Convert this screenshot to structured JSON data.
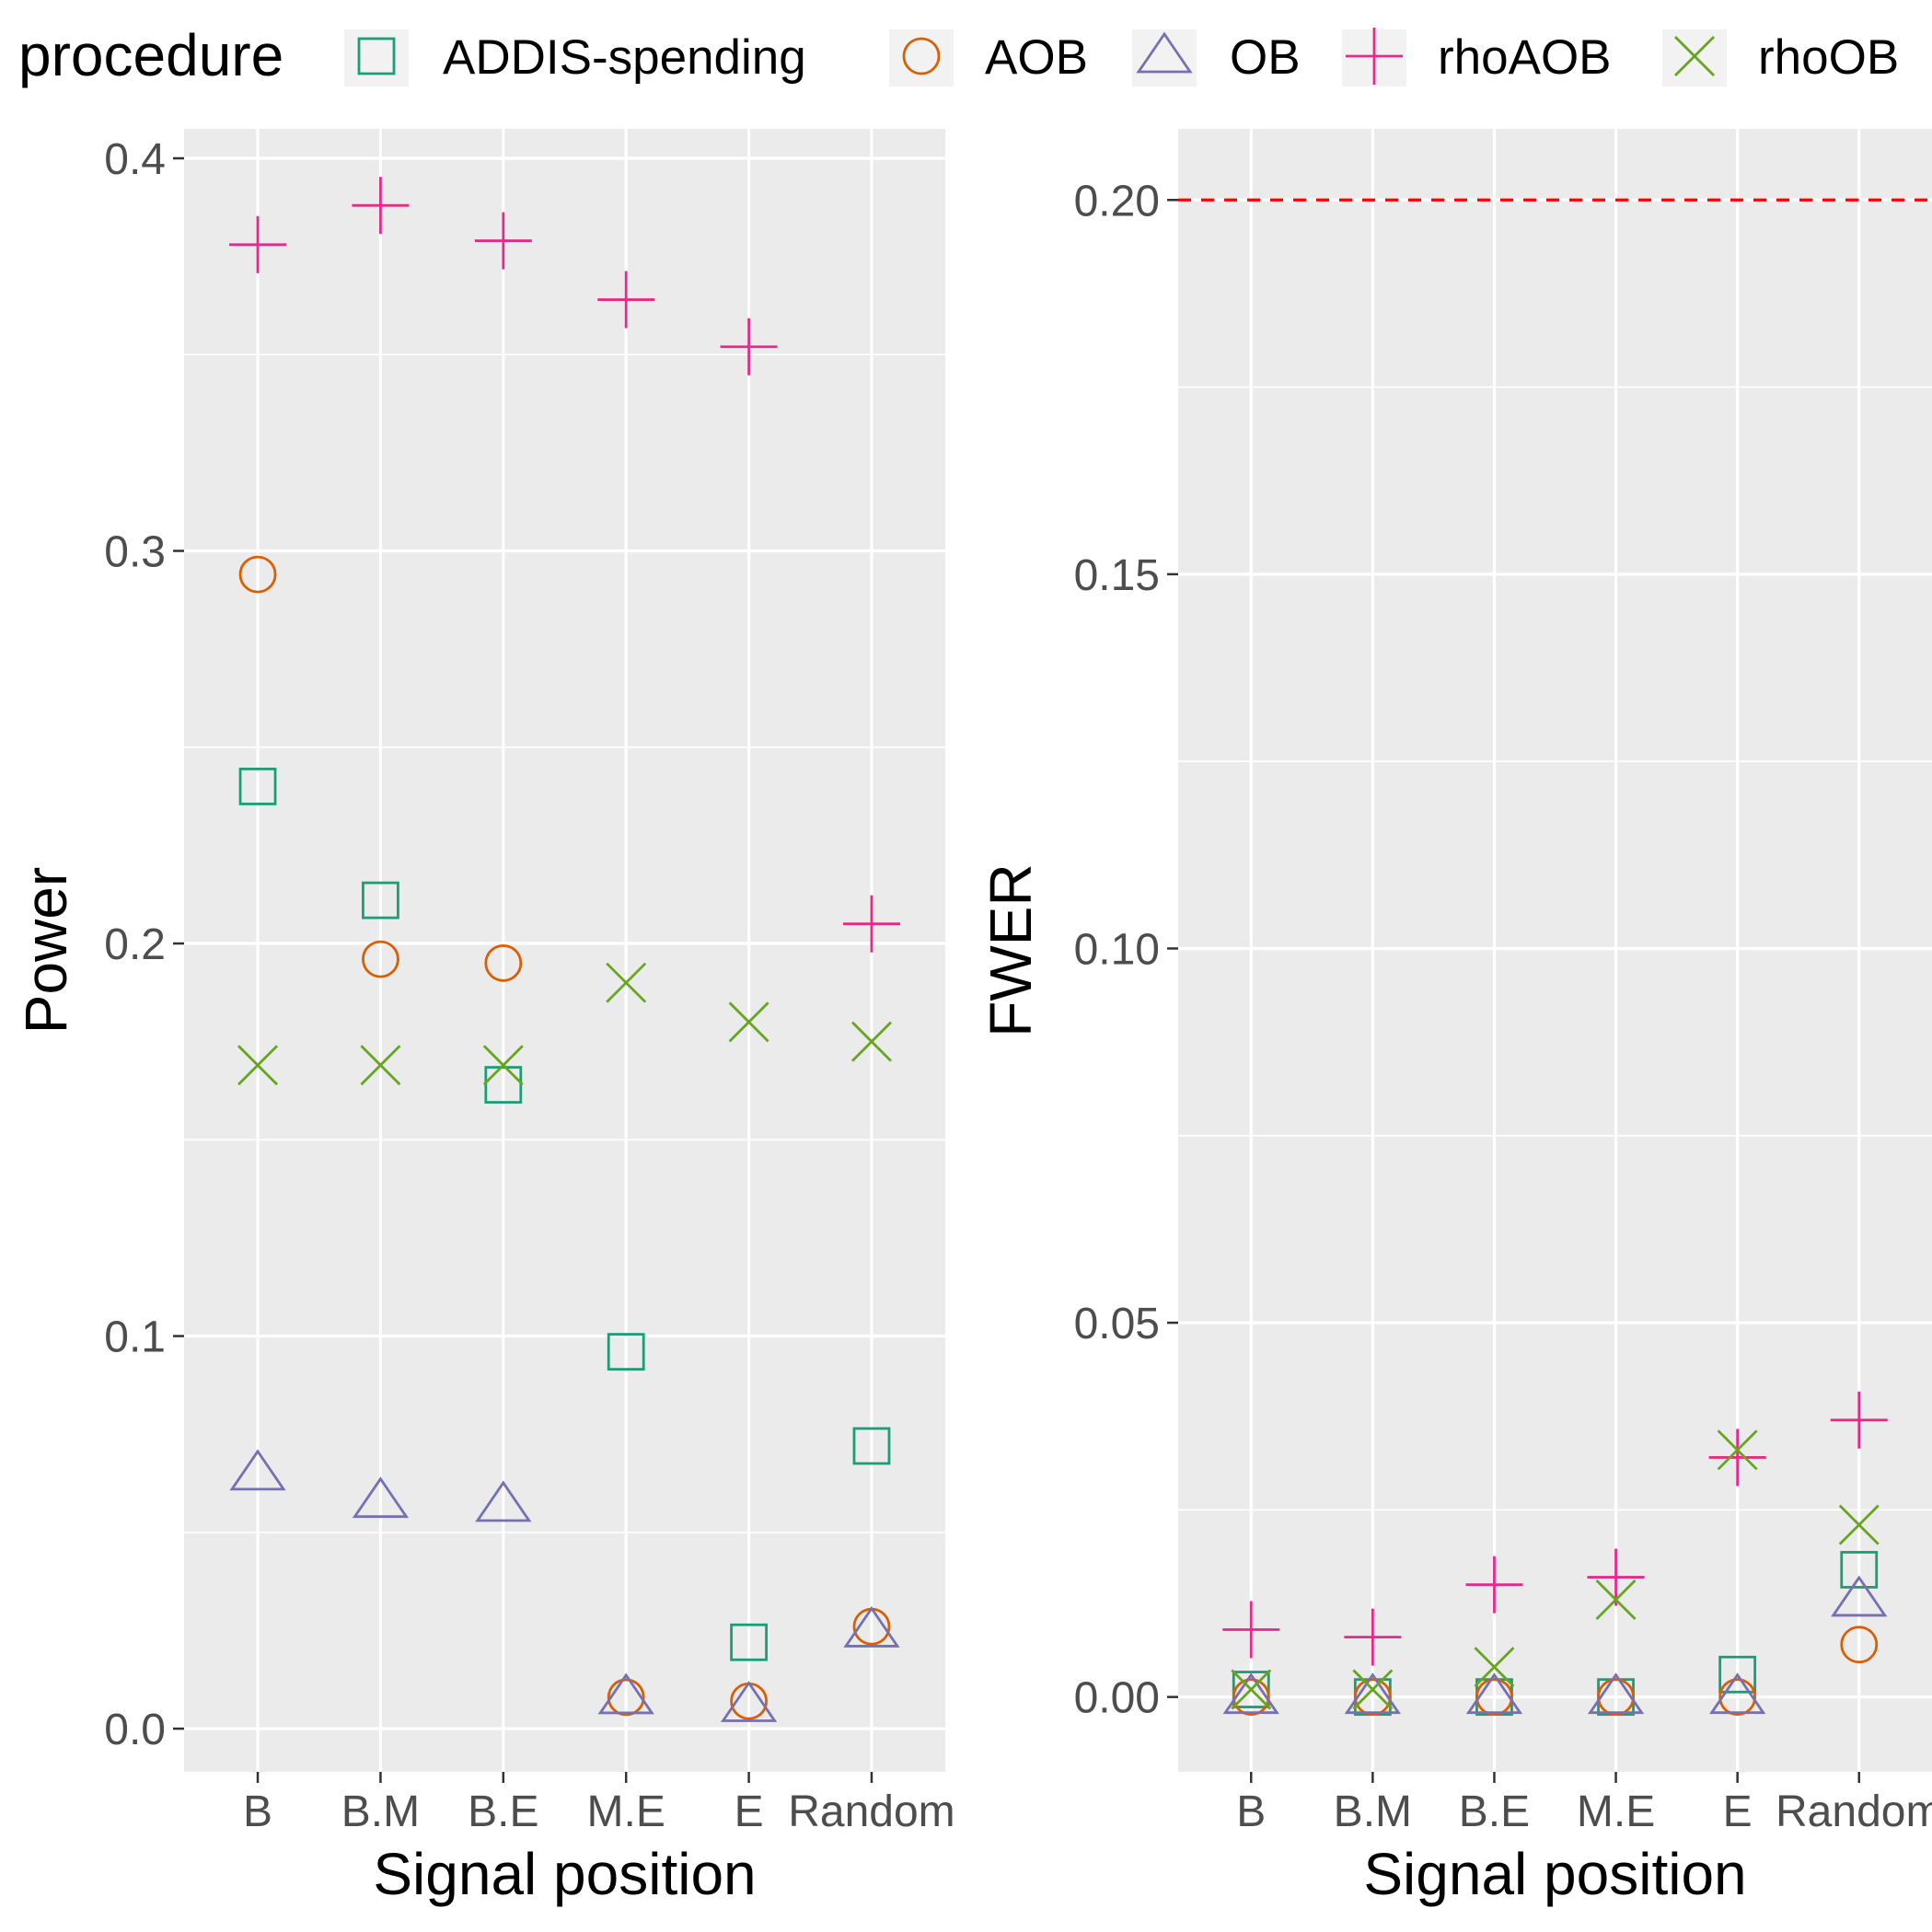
{
  "legend": {
    "title": "procedure",
    "entries": [
      {
        "name": "ADDIS-spending",
        "shape": "square-open",
        "color": "#1b9e77"
      },
      {
        "name": "AOB",
        "shape": "circle-open",
        "color": "#d95f02"
      },
      {
        "name": "OB",
        "shape": "triangle-open",
        "color": "#7570b3"
      },
      {
        "name": "rhoAOB",
        "shape": "plus",
        "color": "#e7298a"
      },
      {
        "name": "rhoOB",
        "shape": "cross",
        "color": "#66a61e"
      }
    ]
  },
  "chart_data": [
    {
      "type": "scatter",
      "title": "",
      "xlabel": "Signal position",
      "ylabel": "Power",
      "categories": [
        "B",
        "B.M",
        "B.E",
        "M.E",
        "E",
        "Random"
      ],
      "ylim": [
        -0.011,
        0.4075
      ],
      "yticks": [
        0.0,
        0.1,
        0.2,
        0.3,
        0.4
      ],
      "ytick_labels": [
        "0.0",
        "0.1",
        "0.2",
        "0.3",
        "0.4"
      ],
      "grid": true,
      "reference_line": null,
      "series": [
        {
          "name": "ADDIS-spending",
          "values": [
            0.24,
            0.211,
            0.164,
            0.096,
            0.022,
            0.072
          ]
        },
        {
          "name": "AOB",
          "values": [
            0.294,
            0.196,
            0.195,
            0.008,
            0.007,
            0.026
          ]
        },
        {
          "name": "OB",
          "values": [
            0.065,
            0.058,
            0.057,
            0.008,
            0.006,
            0.025
          ]
        },
        {
          "name": "rhoAOB",
          "values": [
            0.378,
            0.388,
            0.379,
            0.364,
            0.352,
            0.205
          ]
        },
        {
          "name": "rhoOB",
          "values": [
            0.169,
            0.169,
            0.169,
            0.19,
            0.18,
            0.175
          ]
        }
      ]
    },
    {
      "type": "scatter",
      "title": "",
      "xlabel": "Signal position",
      "ylabel": "FWER",
      "categories": [
        "B",
        "B.M",
        "B.E",
        "M.E",
        "E",
        "Random"
      ],
      "ylim": [
        -0.01,
        0.2095
      ],
      "yticks": [
        0.0,
        0.05,
        0.1,
        0.15,
        0.2
      ],
      "ytick_labels": [
        "0.00",
        "0.05",
        "0.10",
        "0.15",
        "0.20"
      ],
      "grid": true,
      "reference_line": {
        "y": 0.2,
        "color": "#ff0000",
        "style": "dashed"
      },
      "series": [
        {
          "name": "ADDIS-spending",
          "values": [
            0.001,
            0.0,
            0.0,
            0.0,
            0.003,
            0.017
          ]
        },
        {
          "name": "AOB",
          "values": [
            0.0,
            0.0,
            0.0,
            0.0,
            0.0,
            0.007
          ]
        },
        {
          "name": "OB",
          "values": [
            0.0,
            0.0,
            0.0,
            0.0,
            0.0,
            0.013
          ]
        },
        {
          "name": "rhoAOB",
          "values": [
            0.009,
            0.008,
            0.015,
            0.016,
            0.032,
            0.037
          ]
        },
        {
          "name": "rhoOB",
          "values": [
            0.001,
            0.001,
            0.004,
            0.013,
            0.033,
            0.023
          ]
        }
      ]
    }
  ]
}
